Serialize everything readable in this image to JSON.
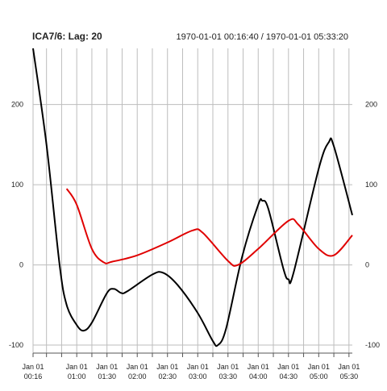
{
  "header": {
    "title": "ICA7/6:  Lag: 20",
    "range": "1970-01-01 00:16:40 / 1970-01-01 05:33:20"
  },
  "chart_data": {
    "type": "line",
    "title": "ICA7/6:  Lag: 20",
    "subtitle": "1970-01-01 00:16:40 / 1970-01-01 05:33:20",
    "xlim": [
      "1970-01-01T00:16:40",
      "1970-01-01T05:33:20"
    ],
    "ylim": [
      -100,
      270
    ],
    "y_ticks": [
      -100,
      0,
      100,
      200
    ],
    "y_tick_labels": [
      "-100",
      "0",
      "100",
      "200"
    ],
    "y_axis_both_sides": true,
    "grid": true,
    "x_tick_labels": [
      {
        "t": "1970-01-01T00:16:40",
        "date": "Jan 01",
        "time": "00:16"
      },
      {
        "t": "1970-01-01T01:00:00",
        "date": "Jan 01",
        "time": "01:00"
      },
      {
        "t": "1970-01-01T01:30:00",
        "date": "Jan 01",
        "time": "01:30"
      },
      {
        "t": "1970-01-01T02:00:00",
        "date": "Jan 01",
        "time": "02:00"
      },
      {
        "t": "1970-01-01T02:30:00",
        "date": "Jan 01",
        "time": "02:30"
      },
      {
        "t": "1970-01-01T03:00:00",
        "date": "Jan 01",
        "time": "03:00"
      },
      {
        "t": "1970-01-01T03:30:00",
        "date": "Jan 01",
        "time": "03:30"
      },
      {
        "t": "1970-01-01T04:00:00",
        "date": "Jan 01",
        "time": "04:00"
      },
      {
        "t": "1970-01-01T04:30:00",
        "date": "Jan 01",
        "time": "04:30"
      },
      {
        "t": "1970-01-01T05:00:00",
        "date": "Jan 01",
        "time": "05:00"
      },
      {
        "t": "1970-01-01T05:30:00",
        "date": "Jan 01",
        "time": "05:30"
      }
    ],
    "x_minor_ticks": [
      "1970-01-01T00:30:00",
      "1970-01-01T00:45:00",
      "1970-01-01T01:15:00",
      "1970-01-01T01:45:00",
      "1970-01-01T02:15:00",
      "1970-01-01T02:45:00",
      "1970-01-01T03:15:00",
      "1970-01-01T03:45:00",
      "1970-01-01T04:15:00",
      "1970-01-01T04:45:00",
      "1970-01-01T05:15:00"
    ],
    "series": [
      {
        "color": "#000000",
        "points": [
          {
            "x": "1970-01-01T00:16:40",
            "y": 270
          },
          {
            "x": "1970-01-01T00:30:00",
            "y": 150
          },
          {
            "x": "1970-01-01T00:43:00",
            "y": 0
          },
          {
            "x": "1970-01-01T00:50:00",
            "y": -50
          },
          {
            "x": "1970-01-01T01:00:00",
            "y": -75
          },
          {
            "x": "1970-01-01T01:07:00",
            "y": -82
          },
          {
            "x": "1970-01-01T01:15:00",
            "y": -72
          },
          {
            "x": "1970-01-01T01:30:00",
            "y": -35
          },
          {
            "x": "1970-01-01T01:37:00",
            "y": -30
          },
          {
            "x": "1970-01-01T01:44:00",
            "y": -35
          },
          {
            "x": "1970-01-01T01:50:00",
            "y": -33
          },
          {
            "x": "1970-01-01T02:15:00",
            "y": -12
          },
          {
            "x": "1970-01-01T02:26:00",
            "y": -10
          },
          {
            "x": "1970-01-01T02:40:00",
            "y": -25
          },
          {
            "x": "1970-01-01T03:00:00",
            "y": -60
          },
          {
            "x": "1970-01-01T03:15:00",
            "y": -95
          },
          {
            "x": "1970-01-01T03:20:00",
            "y": -100
          },
          {
            "x": "1970-01-01T03:28:00",
            "y": -80
          },
          {
            "x": "1970-01-01T03:44:00",
            "y": 10
          },
          {
            "x": "1970-01-01T04:00:00",
            "y": 75
          },
          {
            "x": "1970-01-01T04:04:00",
            "y": 80
          },
          {
            "x": "1970-01-01T04:10:00",
            "y": 70
          },
          {
            "x": "1970-01-01T04:25:00",
            "y": -5
          },
          {
            "x": "1970-01-01T04:30:00",
            "y": -18
          },
          {
            "x": "1970-01-01T04:35:00",
            "y": -10
          },
          {
            "x": "1970-01-01T05:00:00",
            "y": 120
          },
          {
            "x": "1970-01-01T05:10:00",
            "y": 153
          },
          {
            "x": "1970-01-01T05:15:00",
            "y": 148
          },
          {
            "x": "1970-01-01T05:33:20",
            "y": 62
          }
        ]
      },
      {
        "color": "#e00000",
        "points": [
          {
            "x": "1970-01-01T00:50:00",
            "y": 95
          },
          {
            "x": "1970-01-01T01:00:00",
            "y": 75
          },
          {
            "x": "1970-01-01T01:15:00",
            "y": 20
          },
          {
            "x": "1970-01-01T01:27:00",
            "y": 3
          },
          {
            "x": "1970-01-01T01:35:00",
            "y": 4
          },
          {
            "x": "1970-01-01T02:00:00",
            "y": 12
          },
          {
            "x": "1970-01-01T02:30:00",
            "y": 28
          },
          {
            "x": "1970-01-01T02:55:00",
            "y": 43
          },
          {
            "x": "1970-01-01T03:05:00",
            "y": 40
          },
          {
            "x": "1970-01-01T03:30:00",
            "y": 5
          },
          {
            "x": "1970-01-01T03:40:00",
            "y": 0
          },
          {
            "x": "1970-01-01T04:00:00",
            "y": 20
          },
          {
            "x": "1970-01-01T04:30:00",
            "y": 55
          },
          {
            "x": "1970-01-01T04:40:00",
            "y": 50
          },
          {
            "x": "1970-01-01T05:00:00",
            "y": 20
          },
          {
            "x": "1970-01-01T05:15:00",
            "y": 12
          },
          {
            "x": "1970-01-01T05:33:20",
            "y": 37
          }
        ]
      }
    ]
  }
}
